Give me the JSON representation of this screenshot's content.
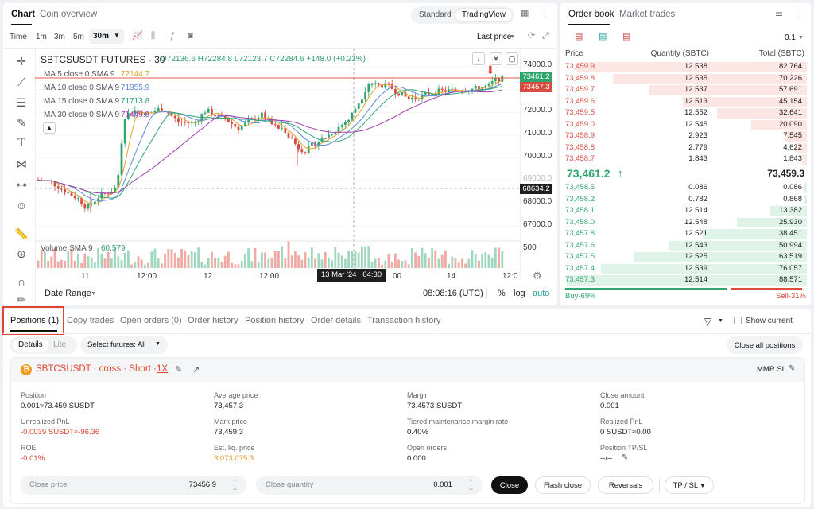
{
  "chart_panel": {
    "tabs": [
      "Chart",
      "Coin overview"
    ],
    "view_modes": [
      "Standard",
      "TradingView"
    ],
    "timeframes": [
      "Time",
      "1m",
      "3m",
      "5m",
      "30m"
    ],
    "price_type": "Last price",
    "symbol": "SBTCSUSDT FUTURES · 30",
    "ohlc": "O72136.6 H72284.8 L72123.7 C72284.6 +148.0 (+0.21%)",
    "ma_lines": [
      {
        "label": "MA 5 close 0 SMA 9",
        "value": "72144.7",
        "color": "#e0a32b"
      },
      {
        "label": "MA 10 close 0 SMA 9",
        "value": "71955.9",
        "color": "#5b8bd6"
      },
      {
        "label": "MA 15 close 0 SMA 9",
        "value": "71713.8",
        "color": "#2fa37a"
      },
      {
        "label": "MA 30 close 0 SMA 9",
        "value": "71449.8",
        "color": "#a23fb0"
      }
    ],
    "y_ticks": [
      "74000.0",
      "72000.0",
      "71000.0",
      "70000.0",
      "69000.0",
      "68000.0",
      "67000.0"
    ],
    "y_ticks_partial": [
      "73000.0"
    ],
    "last_price_tag": "73461.2",
    "mark_price_tag": "73457.3",
    "crosshair_tag": "68634.2",
    "volume_label": "Volume SMA 9",
    "volume_value": "60.579",
    "volume_tick": "500",
    "x_ticks": [
      "11",
      "12:00",
      "12",
      "12:00",
      "14",
      "12:0"
    ],
    "crosshair_time": "13 Mar '24   04:30",
    "x_hidden_tick": "00",
    "date_range": "Date Range",
    "clock": "08:08:16 (UTC)",
    "scale_options": [
      "%",
      "log",
      "auto"
    ]
  },
  "orderbook": {
    "tabs": [
      "Order book",
      "Market trades"
    ],
    "precision": "0.1",
    "headers": [
      "Price",
      "Quantity (SBTC)",
      "Total (SBTC)"
    ],
    "asks": [
      {
        "price": "73,459.9",
        "qty": "12.538",
        "total": "82.764",
        "depth": 0.95
      },
      {
        "price": "73,459.8",
        "qty": "12.535",
        "total": "70.226",
        "depth": 0.8
      },
      {
        "price": "73,459.7",
        "qty": "12.537",
        "total": "57.691",
        "depth": 0.65
      },
      {
        "price": "73,459.6",
        "qty": "12.513",
        "total": "45.154",
        "depth": 0.51
      },
      {
        "price": "73,459.5",
        "qty": "12.552",
        "total": "32.641",
        "depth": 0.37
      },
      {
        "price": "73,459.0",
        "qty": "12.545",
        "total": "20.090",
        "depth": 0.23
      },
      {
        "price": "73,458.9",
        "qty": "2.923",
        "total": "7.545",
        "depth": 0.09
      },
      {
        "price": "73,458.8",
        "qty": "2.779",
        "total": "4.622",
        "depth": 0.05
      },
      {
        "price": "73,458.7",
        "qty": "1.843",
        "total": "1.843",
        "depth": 0.02
      }
    ],
    "last_price": "73,461.2",
    "mark_price": "73,459.3",
    "bids": [
      {
        "price": "73,458.5",
        "qty": "0.086",
        "total": "0.086",
        "depth": 0.01
      },
      {
        "price": "73,458.2",
        "qty": "0.782",
        "total": "0.868",
        "depth": 0.01
      },
      {
        "price": "73,458.1",
        "qty": "12.514",
        "total": "13.382",
        "depth": 0.15
      },
      {
        "price": "73,458.0",
        "qty": "12.548",
        "total": "25.930",
        "depth": 0.29
      },
      {
        "price": "73,457.8",
        "qty": "12.521",
        "total": "38.451",
        "depth": 0.43
      },
      {
        "price": "73,457.6",
        "qty": "12.543",
        "total": "50.994",
        "depth": 0.57
      },
      {
        "price": "73,457.5",
        "qty": "12.525",
        "total": "63.519",
        "depth": 0.71
      },
      {
        "price": "73,457.4",
        "qty": "12.539",
        "total": "76.057",
        "depth": 0.85
      },
      {
        "price": "73,457.3",
        "qty": "12.514",
        "total": "88.571",
        "depth": 0.99
      }
    ],
    "buy_pct": "Buy-69%",
    "sell_pct": "Sell-31%",
    "buy_ratio": 0.69
  },
  "positions": {
    "tabs": [
      "Positions (1)",
      "Copy trades",
      "Open orders (0)",
      "Order history",
      "Position history",
      "Order details",
      "Transaction history"
    ],
    "show_current": "Show current",
    "detail_modes": [
      "Details",
      "Lite"
    ],
    "select_futures": "Select futures: All",
    "close_all": "Close all positions",
    "position_title": "SBTCSUSDT · cross · Short ·",
    "leverage": "1X",
    "mmr_sl": "MMR SL",
    "fields": [
      {
        "label": "Position",
        "value": "0.001≈73.459 SUSDT"
      },
      {
        "label": "Average price",
        "value": "73,457.3"
      },
      {
        "label": "Margin",
        "value": "73.4573 SUSDT"
      },
      {
        "label": "Close amount",
        "value": "0.001"
      },
      {
        "label": "Unrealized PnL",
        "value": "-0.0039 SUSDT≈-96.36"
      },
      {
        "label": "Mark price",
        "value": "73,459.3"
      },
      {
        "label": "Tiered maintenance margin rate",
        "value": "0.40%"
      },
      {
        "label": "Realized PnL",
        "value": "0 SUSDT≈0.00"
      },
      {
        "label": "ROE",
        "value": "-0.01%"
      },
      {
        "label": "Est. liq. price",
        "value": "3,073,075.3"
      },
      {
        "label": "Open orders",
        "value": "0.000"
      },
      {
        "label": "Position TP/SL",
        "value": "--/--"
      }
    ],
    "close_price_label": "Close price",
    "close_price_value": "73456.9",
    "close_qty_label": "Close quantity",
    "close_qty_value": "0.001",
    "buttons": [
      "Close",
      "Flash close",
      "Reversals",
      "TP / SL"
    ]
  }
}
